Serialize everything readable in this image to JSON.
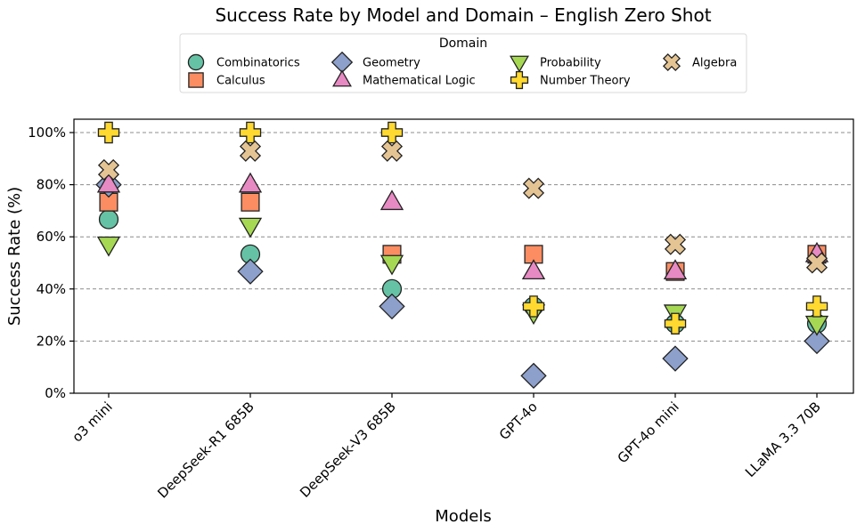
{
  "chart_data": {
    "type": "scatter",
    "title": "Success Rate by Model and Domain – English Zero Shot",
    "xlabel": "Models",
    "ylabel": "Success Rate (%)",
    "ylim": [
      0,
      100
    ],
    "yticks": [
      0,
      20,
      40,
      60,
      80,
      100
    ],
    "ytick_labels": [
      "0%",
      "20%",
      "40%",
      "60%",
      "80%",
      "100%"
    ],
    "grid": "horizontal dashed",
    "categories": [
      "o3 mini",
      "DeepSeek-R1 685B",
      "DeepSeek-V3 685B",
      "GPT-4o",
      "GPT-4o mini",
      "LLaMA 3.3 70B"
    ],
    "legend": {
      "title": "Domain",
      "placement": "top-center"
    },
    "series": [
      {
        "name": "Combinatorics",
        "marker": "circle",
        "color": "#66c2a5",
        "values": [
          66.7,
          53.3,
          40.0,
          33.3,
          26.7,
          26.7
        ]
      },
      {
        "name": "Calculus",
        "marker": "square",
        "color": "#fc8d62",
        "values": [
          73.3,
          73.3,
          53.3,
          53.3,
          46.7,
          53.3
        ]
      },
      {
        "name": "Geometry",
        "marker": "diamond",
        "color": "#8da0cb",
        "values": [
          80.0,
          46.7,
          33.3,
          6.7,
          13.3,
          20.0
        ]
      },
      {
        "name": "Mathematical Logic",
        "marker": "triangle-up",
        "color": "#e78ac3",
        "values": [
          80.0,
          80.0,
          73.3,
          46.7,
          46.7,
          53.3
        ]
      },
      {
        "name": "Probability",
        "marker": "triangle-down",
        "color": "#a6d854",
        "values": [
          57.1,
          64.3,
          50.0,
          31.0,
          31.0,
          26.7
        ]
      },
      {
        "name": "Number Theory",
        "marker": "plus",
        "color": "#ffd92f",
        "values": [
          100,
          100,
          100,
          33.3,
          26.7,
          33.3
        ]
      },
      {
        "name": "Algebra",
        "marker": "x",
        "color": "#e5c494",
        "values": [
          85.7,
          92.9,
          92.9,
          78.6,
          57.1,
          50.0
        ]
      }
    ]
  }
}
